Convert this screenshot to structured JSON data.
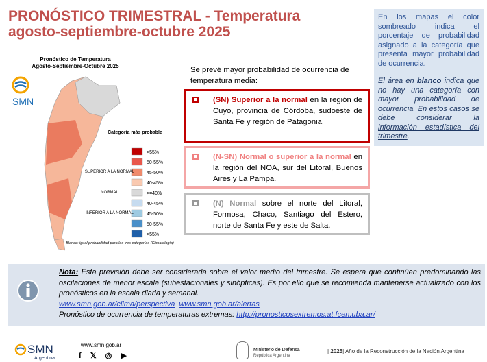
{
  "header": {
    "title_line1": "PRONÓSTICO TRIMESTRAL - Temperatura",
    "title_line2": "agosto-septiembre-octubre 2025"
  },
  "map": {
    "title": "Pronóstico de Temperatura",
    "subtitle": "Agosto-Septiembre-Octubre 2025",
    "logo": "SMN",
    "legend_title": "Categoría más probable",
    "legend_items": [
      ">55%",
      "50-55%",
      "45-50%",
      "40-45%",
      ">=40%",
      "40-45%",
      "45-50%",
      "50-55%",
      ">55%"
    ],
    "group_labels": [
      "SUPERIOR A LA NORMAL",
      "NORMAL",
      "INFERIOR A LA NORMAL"
    ],
    "footnote": "Blanco: igual probabilidad para las tres categorías (Climatología)"
  },
  "sidebar": {
    "note1": "En los mapas el color sombreado indica el porcentaje de probabilidad asignado a la categoría que presenta mayor probabilidad de ocurrencia.",
    "note2": [
      "El área en ",
      "blanco",
      " indica que no hay una categoría con mayor probabilidad de ocurrencia. En estos casos se debe considerar la ",
      "información estadística del trimestre",
      "."
    ]
  },
  "intro": "Se prevé mayor probabilidad de ocurrencia de temperatura media:",
  "boxes": [
    {
      "label": "(SN) Superior a la normal",
      "text": " en la región de Cuyo, provincia de Córdoba, sudoeste de Santa Fe y región de Patagonia."
    },
    {
      "label": "(N-SN) Normal o superior a la normal",
      "text": " en la región del NOA, sur del Litoral, Buenos Aires y La Pampa."
    },
    {
      "label": "(N) Normal",
      "text": " sobre el norte del Litoral, Formosa, Chaco, Santiago del Estero, norte de Santa Fe y este de Salta."
    }
  ],
  "note": {
    "label": "Nota:",
    "text": " Esta previsión debe ser considerada sobre el valor medio del trimestre. Se espera que continúen predominando las oscilaciones de menor escala (subestacionales y sinópticas). Es por ello que se recomienda mantenerse actualizado con los pronósticos en la escala diaria y semanal.",
    "link1": "www.smn.gob.ar/clima/perspectiva",
    "link2": "www.smn.gob.ar/alertas",
    "extremes": "Pronóstico de ocurrencia de temperaturas extremas: ",
    "link3": "http://pronosticosextremos.at.fcen.uba.ar/"
  },
  "footer": {
    "logo": "SMN",
    "logo_sub": "Argentina",
    "web": "www.smn.gob.ar",
    "ministry": "Ministerio de Defensa",
    "republic": "República Argentina",
    "year": "2025",
    "motto": "Año de la Reconstrucción de la Nación Argentina"
  }
}
